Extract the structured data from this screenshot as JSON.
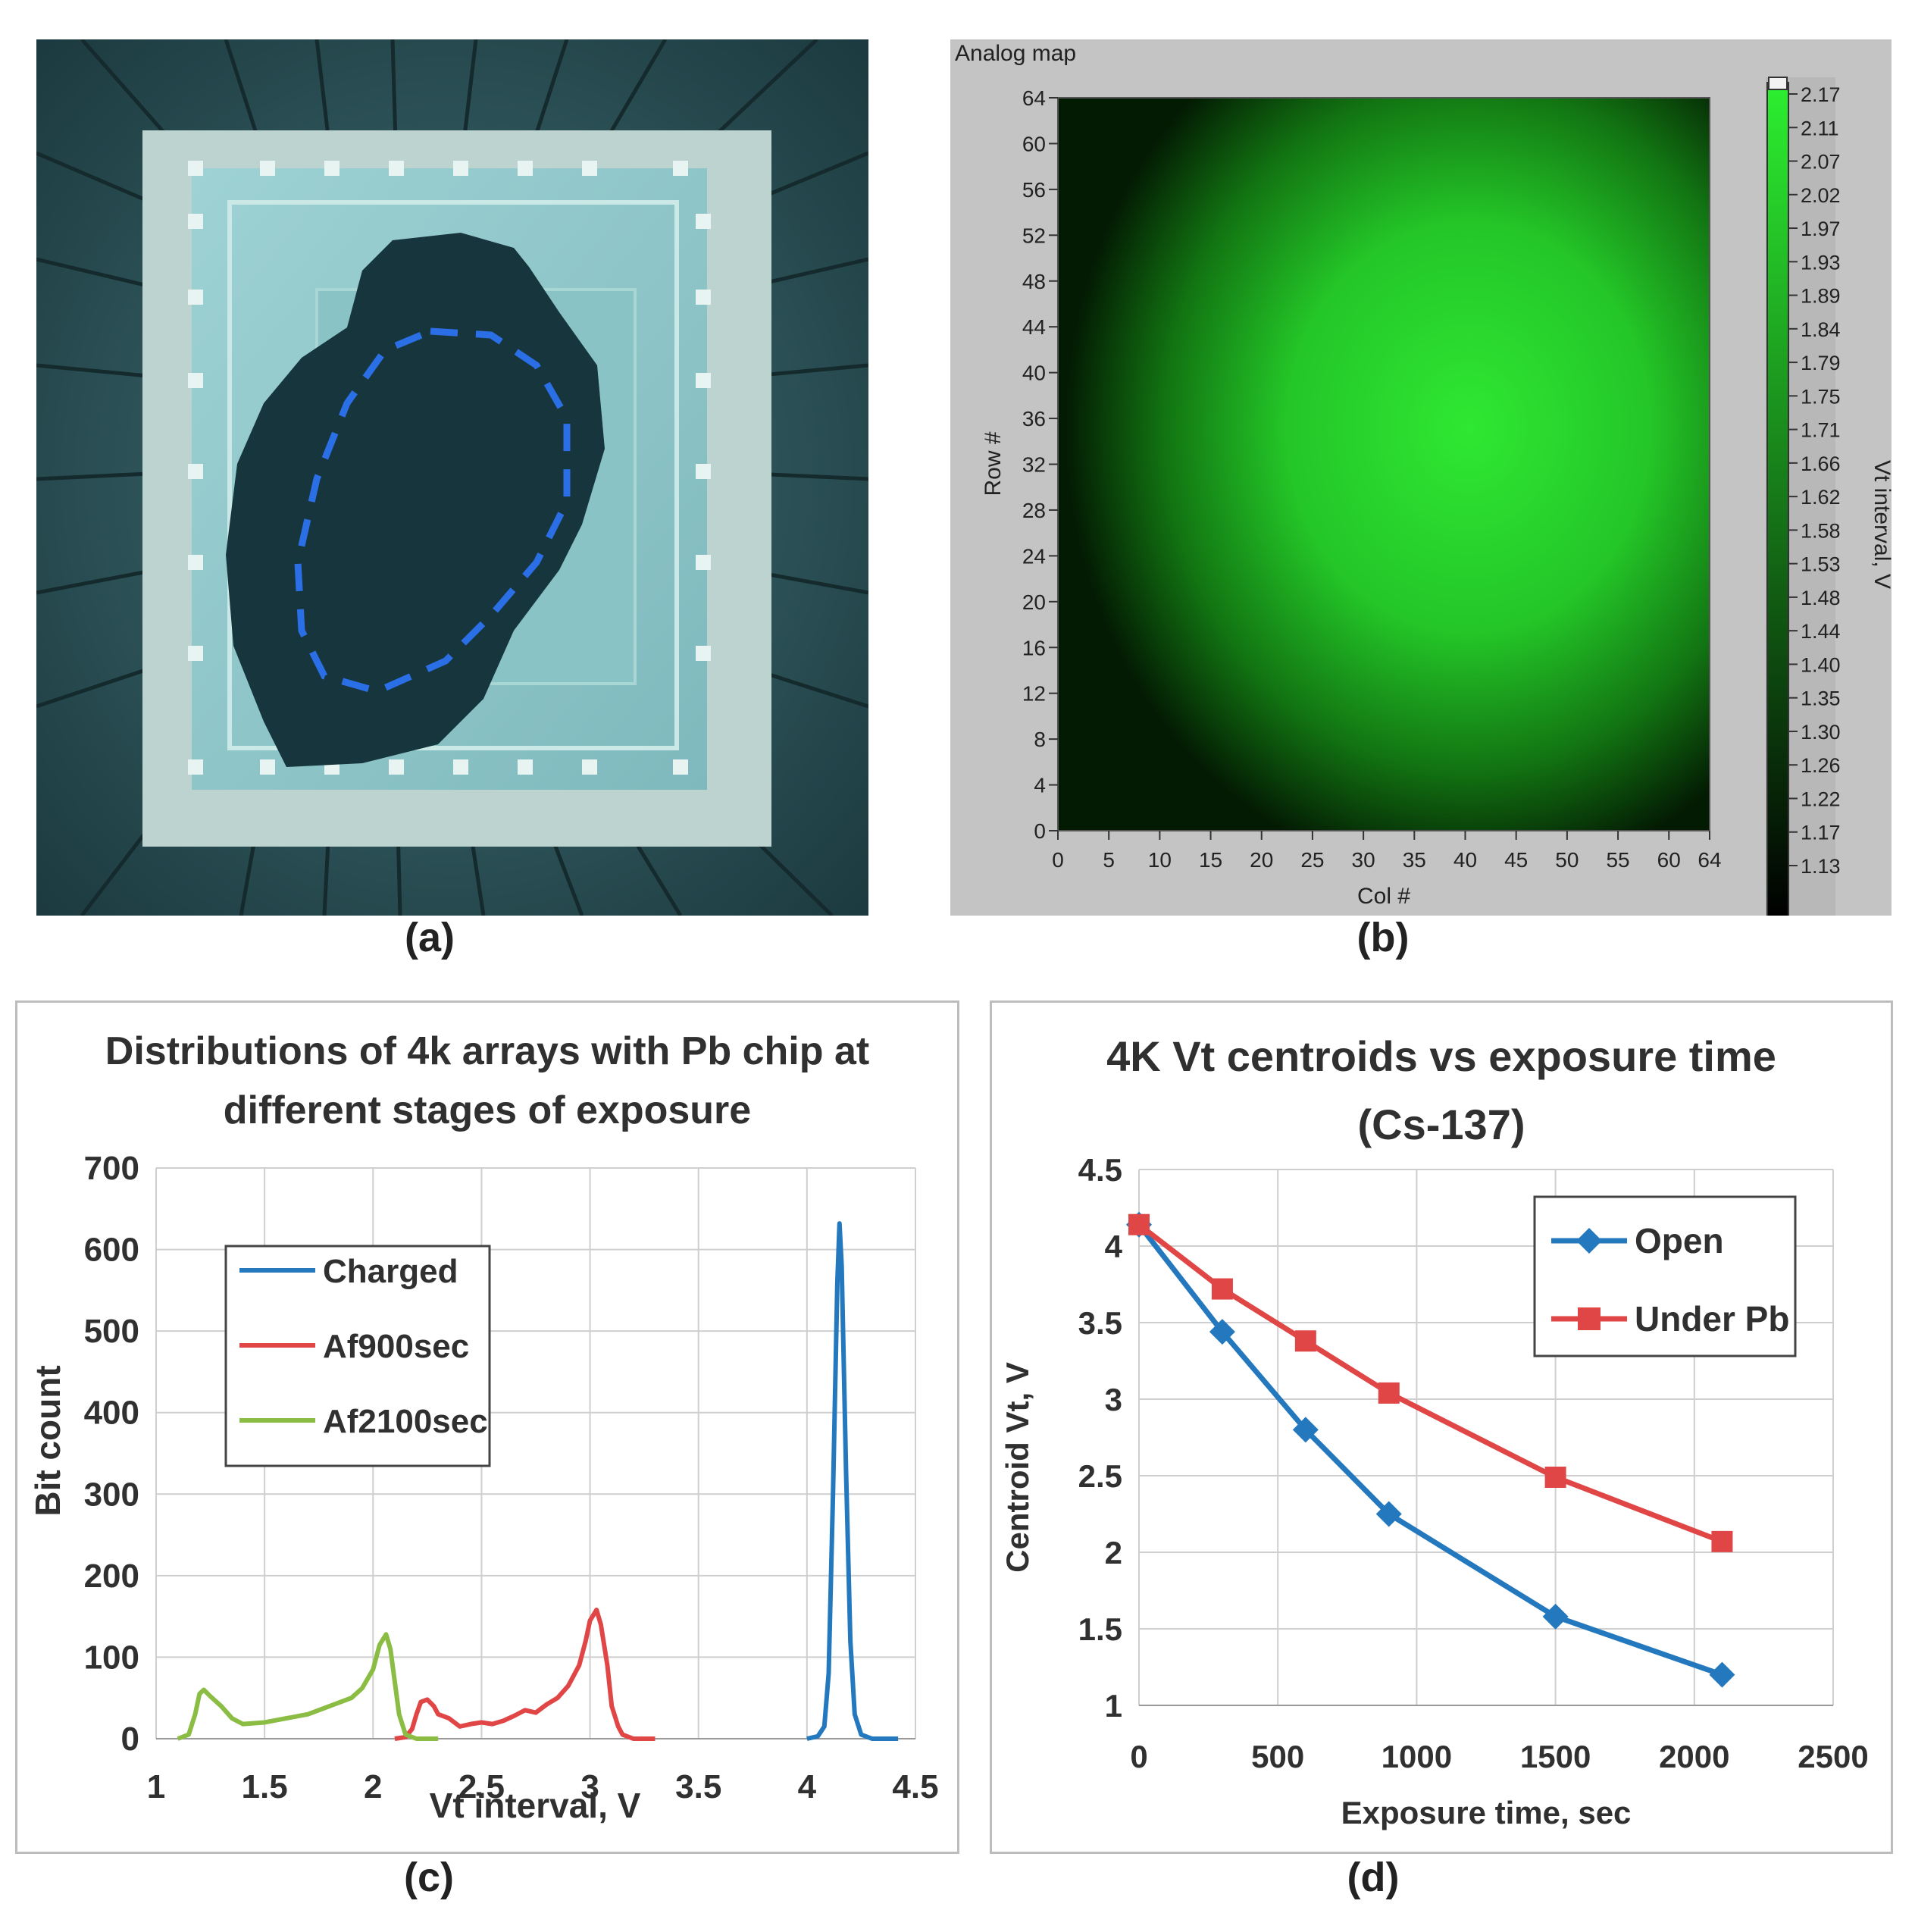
{
  "panel_a": {
    "caption": "(a)"
  },
  "panel_b": {
    "window_title": "Analog map",
    "caption": "(b)",
    "xlabel": "Col #",
    "ylabel": "Row #",
    "colorbar_label": "Vt interval, V",
    "xticks": [
      0,
      5,
      10,
      15,
      20,
      25,
      30,
      35,
      40,
      45,
      50,
      55,
      60,
      64
    ],
    "yticks": [
      0,
      4,
      8,
      12,
      16,
      20,
      24,
      28,
      32,
      36,
      40,
      44,
      48,
      52,
      56,
      60,
      64
    ],
    "colorbar_ticks": [
      "2.17",
      "2.11",
      "2.07",
      "2.02",
      "1.97",
      "1.93",
      "1.89",
      "1.84",
      "1.79",
      "1.75",
      "1.71",
      "1.66",
      "1.62",
      "1.58",
      "1.53",
      "1.48",
      "1.44",
      "1.40",
      "1.35",
      "1.30",
      "1.26",
      "1.22",
      "1.17",
      "1.13"
    ],
    "colors": {
      "low": "#000000",
      "high": "#2cf030",
      "frame": "#c4c4c4"
    }
  },
  "panel_c": {
    "caption": "(c)"
  },
  "panel_d": {
    "caption": "(d)"
  },
  "chart_data": [
    {
      "type": "heatmap",
      "title": "Analog map",
      "xlabel": "Col #",
      "ylabel": "Row #",
      "xlim": [
        0,
        64
      ],
      "ylim": [
        0,
        64
      ],
      "colorbar_range": [
        1.13,
        2.17
      ],
      "colorbar_label": "Vt interval, V"
    },
    {
      "type": "line",
      "title_lines": [
        "Distributions of 4k arrays with Pb chip at",
        "different stages of exposure"
      ],
      "xlabel": "Vt interval, V",
      "ylabel": "Bit count",
      "xlim": [
        1,
        4.5
      ],
      "ylim": [
        0,
        700
      ],
      "xticks": [
        "1",
        "1.5",
        "2",
        "2.5",
        "3",
        "3.5",
        "4",
        "4.5"
      ],
      "yticks": [
        "0",
        "100",
        "200",
        "300",
        "400",
        "500",
        "600",
        "700"
      ],
      "legend_position": "top-left",
      "series": [
        {
          "name": "Charged",
          "color": "#2478bd",
          "points": [
            [
              4.0,
              0
            ],
            [
              4.05,
              3
            ],
            [
              4.08,
              15
            ],
            [
              4.1,
              80
            ],
            [
              4.12,
              300
            ],
            [
              4.14,
              560
            ],
            [
              4.15,
              632
            ],
            [
              4.16,
              580
            ],
            [
              4.18,
              330
            ],
            [
              4.2,
              120
            ],
            [
              4.22,
              30
            ],
            [
              4.25,
              5
            ],
            [
              4.3,
              0
            ],
            [
              4.42,
              0
            ]
          ]
        },
        {
          "name": "Af900sec",
          "color": "#e04646",
          "points": [
            [
              2.1,
              0
            ],
            [
              2.15,
              2
            ],
            [
              2.18,
              12
            ],
            [
              2.2,
              30
            ],
            [
              2.22,
              45
            ],
            [
              2.25,
              48
            ],
            [
              2.28,
              40
            ],
            [
              2.3,
              30
            ],
            [
              2.35,
              25
            ],
            [
              2.4,
              15
            ],
            [
              2.45,
              18
            ],
            [
              2.5,
              20
            ],
            [
              2.55,
              18
            ],
            [
              2.6,
              22
            ],
            [
              2.65,
              28
            ],
            [
              2.7,
              35
            ],
            [
              2.75,
              32
            ],
            [
              2.8,
              42
            ],
            [
              2.85,
              50
            ],
            [
              2.9,
              65
            ],
            [
              2.95,
              90
            ],
            [
              2.98,
              120
            ],
            [
              3.0,
              145
            ],
            [
              3.03,
              158
            ],
            [
              3.05,
              140
            ],
            [
              3.08,
              90
            ],
            [
              3.1,
              40
            ],
            [
              3.13,
              15
            ],
            [
              3.15,
              5
            ],
            [
              3.2,
              0
            ],
            [
              3.3,
              0
            ]
          ]
        },
        {
          "name": "Af2100sec",
          "color": "#8bbd45",
          "points": [
            [
              1.1,
              0
            ],
            [
              1.15,
              5
            ],
            [
              1.18,
              30
            ],
            [
              1.2,
              55
            ],
            [
              1.22,
              60
            ],
            [
              1.25,
              52
            ],
            [
              1.3,
              40
            ],
            [
              1.35,
              25
            ],
            [
              1.4,
              18
            ],
            [
              1.5,
              20
            ],
            [
              1.6,
              25
            ],
            [
              1.7,
              30
            ],
            [
              1.8,
              40
            ],
            [
              1.9,
              50
            ],
            [
              1.95,
              62
            ],
            [
              2.0,
              85
            ],
            [
              2.03,
              115
            ],
            [
              2.06,
              128
            ],
            [
              2.08,
              110
            ],
            [
              2.1,
              70
            ],
            [
              2.12,
              30
            ],
            [
              2.15,
              5
            ],
            [
              2.2,
              0
            ],
            [
              2.3,
              0
            ]
          ]
        }
      ]
    },
    {
      "type": "line",
      "title_lines": [
        "4K Vt centroids vs exposure time",
        "(Cs-137)"
      ],
      "xlabel": "Exposure time, sec",
      "ylabel": "Centroid Vt, V",
      "xlim": [
        0,
        2500
      ],
      "ylim": [
        1,
        4.5
      ],
      "xticks": [
        "0",
        "500",
        "1000",
        "1500",
        "2000",
        "2500"
      ],
      "yticks": [
        "1",
        "1.5",
        "2",
        "2.5",
        "3",
        "3.5",
        "4",
        "4.5"
      ],
      "legend_position": "top-right",
      "series": [
        {
          "name": "Open",
          "color": "#2478bd",
          "marker": "diamond",
          "x": [
            0,
            300,
            600,
            900,
            1500,
            2100
          ],
          "y": [
            4.14,
            3.44,
            2.8,
            2.25,
            1.58,
            1.2
          ]
        },
        {
          "name": "Under Pb",
          "color": "#e04646",
          "marker": "square",
          "x": [
            0,
            300,
            600,
            900,
            1500,
            2100
          ],
          "y": [
            4.14,
            3.72,
            3.38,
            3.04,
            2.49,
            2.07
          ]
        }
      ]
    }
  ]
}
